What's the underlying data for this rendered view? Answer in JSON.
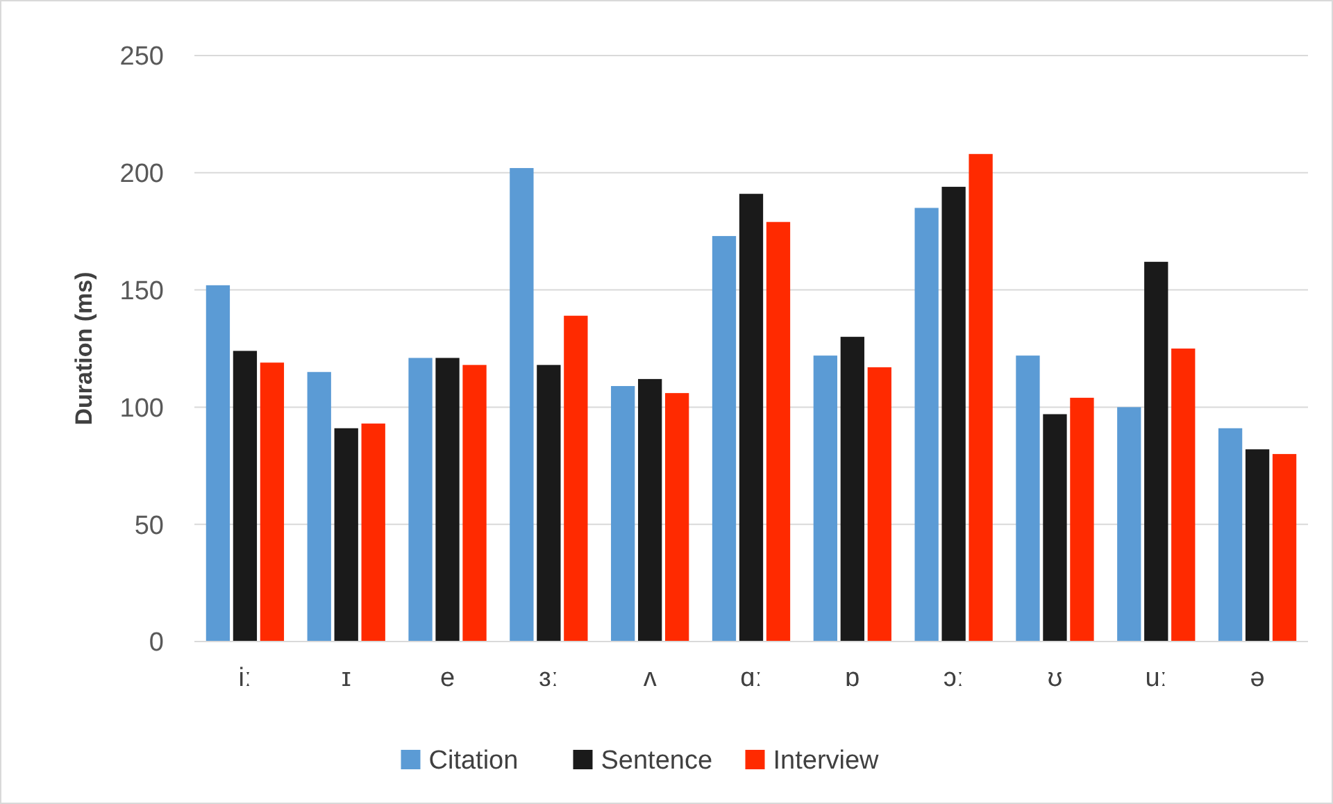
{
  "chart_data": {
    "type": "bar",
    "ylabel": "Duration (ms)",
    "categories": [
      "iː",
      "ɪ",
      "e",
      "ɜː",
      "ʌ",
      "ɑː",
      "ɒ",
      "ɔː",
      "ʊ",
      "uː",
      "ə"
    ],
    "series": [
      {
        "name": "Citation",
        "color": "#5b9bd5",
        "values": [
          152,
          115,
          121,
          202,
          109,
          173,
          122,
          185,
          122,
          100,
          91
        ]
      },
      {
        "name": "Sentence",
        "color": "#1a1a1a",
        "values": [
          124,
          91,
          121,
          118,
          112,
          191,
          130,
          194,
          97,
          162,
          82
        ]
      },
      {
        "name": "Interview",
        "color": "#ff2a00",
        "values": [
          119,
          93,
          118,
          139,
          106,
          179,
          117,
          208,
          104,
          125,
          80
        ]
      }
    ],
    "ylim": [
      0,
      250
    ],
    "yticks": [
      0,
      50,
      100,
      150,
      200,
      250
    ],
    "grid": "y",
    "legend": "bottom"
  }
}
